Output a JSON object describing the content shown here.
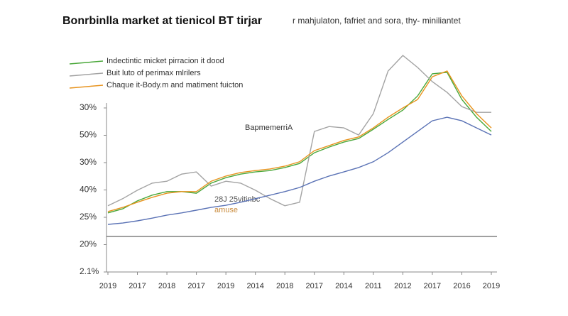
{
  "chart_data": {
    "type": "line",
    "title": "Bonrbinlla market at tienicol BT tirjar",
    "subtitle": "r mahjulaton, fafriet and sora, thy- miniliantet",
    "categories": [
      "2019",
      null,
      "2017",
      null,
      "2018",
      null,
      "2017",
      null,
      "2019",
      null,
      "2014",
      null,
      "2018",
      null,
      "2017",
      null,
      "2014",
      null,
      "2011",
      null,
      "2012",
      null,
      "2017",
      null,
      "2016",
      null,
      "2019"
    ],
    "y_categories": [
      "2.1%",
      "20%",
      "25%",
      "40%",
      "30%",
      "50%",
      "30%"
    ],
    "ylim": [
      0,
      8
    ],
    "reference_line": 1.3,
    "series": [
      {
        "name": "Indectintic micket pirracion it dood",
        "color": "#4aa83a",
        "values": [
          2.16,
          2.31,
          2.6,
          2.81,
          2.94,
          2.94,
          2.88,
          3.25,
          3.45,
          3.58,
          3.66,
          3.71,
          3.82,
          3.97,
          4.36,
          4.57,
          4.75,
          4.88,
          5.22,
          5.58,
          5.92,
          6.44,
          7.25,
          7.3,
          6.31,
          5.66,
          5.14
        ]
      },
      {
        "name": "Buit luto of perimax mlrilers",
        "color": "#a3a3a3",
        "values": [
          2.42,
          2.68,
          2.99,
          3.25,
          3.32,
          3.58,
          3.66,
          3.14,
          3.32,
          3.25,
          2.99,
          2.68,
          2.42,
          2.55,
          5.14,
          5.32,
          5.27,
          5.01,
          5.79,
          7.35,
          7.92,
          7.48,
          6.96,
          6.57,
          6.05,
          5.84,
          5.84
        ]
      },
      {
        "name": "Chaque it-Body.m and matiment fuicton",
        "color": "#e8941f",
        "values": [
          2.21,
          2.36,
          2.55,
          2.73,
          2.88,
          2.94,
          2.94,
          3.32,
          3.51,
          3.64,
          3.71,
          3.77,
          3.87,
          4.03,
          4.44,
          4.62,
          4.81,
          4.94,
          5.27,
          5.66,
          6.0,
          6.31,
          7.14,
          7.35,
          6.44,
          5.79,
          5.27
        ]
      },
      {
        "name": null,
        "color": "#5a72b5",
        "values": [
          1.74,
          1.79,
          1.87,
          1.97,
          2.08,
          2.16,
          2.26,
          2.36,
          2.44,
          2.55,
          2.68,
          2.81,
          2.94,
          3.09,
          3.32,
          3.51,
          3.66,
          3.82,
          4.03,
          4.36,
          4.75,
          5.14,
          5.53,
          5.66,
          5.53,
          5.27,
          5.01
        ]
      }
    ],
    "annotations": [
      "BapmemerriA",
      "28J 25vitinbc",
      "amuse"
    ]
  }
}
